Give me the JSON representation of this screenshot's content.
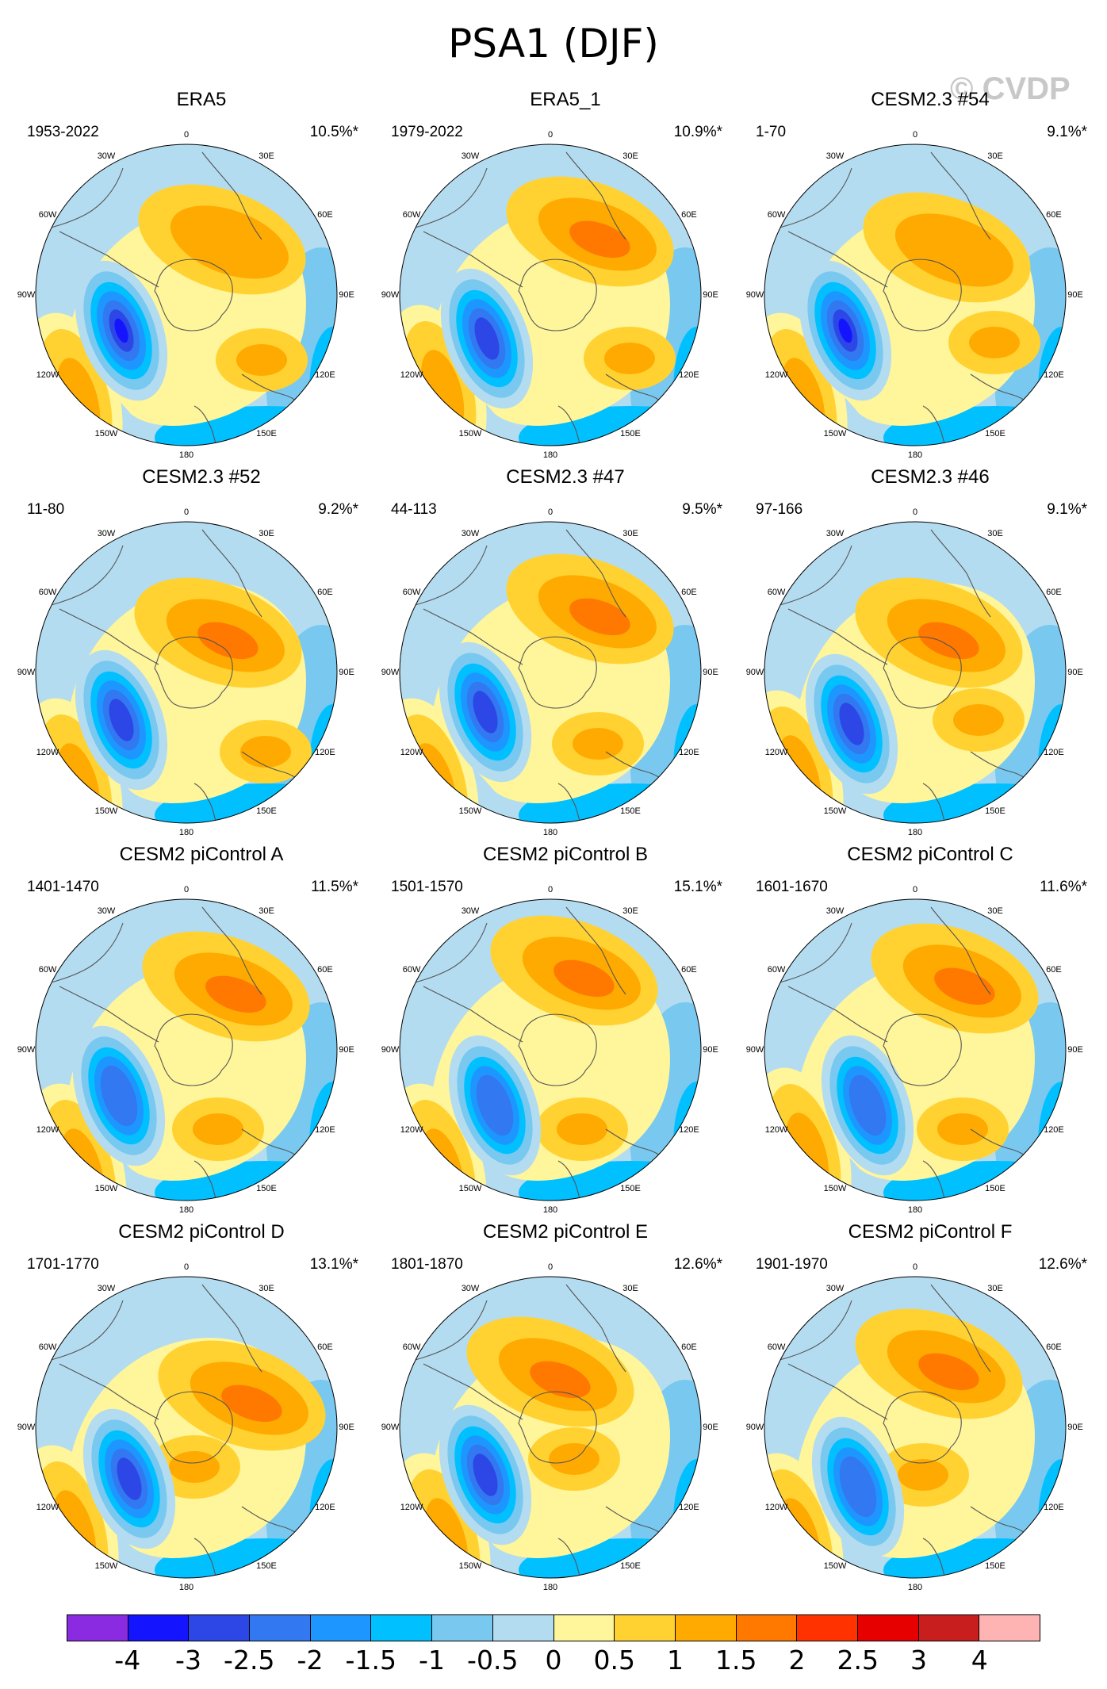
{
  "title": "PSA1 (DJF)",
  "watermark": "© CVDP",
  "longitude_labels": [
    "0",
    "30E",
    "60E",
    "90E",
    "120E",
    "150E",
    "180",
    "150W",
    "120W",
    "90W",
    "60W",
    "30W"
  ],
  "palette": {
    "neg4": "#8a2be2",
    "neg35": "#1414ff",
    "neg3": "#2d46e6",
    "neg25": "#3278f0",
    "neg2": "#1e96ff",
    "neg15": "#00c0ff",
    "neg1": "#78c8f0",
    "neg05": "#b4dcf0",
    "pos0": "#fff59a",
    "pos05": "#ffd232",
    "pos1": "#ffaa00",
    "pos15": "#ff7800",
    "pos2": "#ff3200",
    "pos25": "#e60000",
    "pos3": "#c81e1e",
    "pos35": "#ffb4b4",
    "coast": "#555555",
    "outline": "#000000"
  },
  "colorbar": {
    "colors": [
      "#8a2be2",
      "#1414ff",
      "#2d46e6",
      "#3278f0",
      "#1e96ff",
      "#00c0ff",
      "#78c8f0",
      "#b4dcf0",
      "#fff59a",
      "#ffd232",
      "#ffaa00",
      "#ff7800",
      "#ff3200",
      "#e60000",
      "#c81e1e",
      "#ffb4b4"
    ],
    "labels": [
      "-4",
      "-3",
      "-2.5",
      "-2",
      "-1.5",
      "-1",
      "-0.5",
      "0",
      "0.5",
      "1",
      "1.5",
      "2",
      "2.5",
      "3",
      "4"
    ]
  },
  "panels": [
    {
      "title": "ERA5",
      "years": "1953-2022",
      "pct": "10.5%*"
    },
    {
      "title": "ERA5_1",
      "years": "1979-2022",
      "pct": "10.9%*"
    },
    {
      "title": "CESM2.3 #54",
      "years": "1-70",
      "pct": "9.1%*"
    },
    {
      "title": "CESM2.3 #52",
      "years": "11-80",
      "pct": "9.2%*"
    },
    {
      "title": "CESM2.3 #47",
      "years": "44-113",
      "pct": "9.5%*"
    },
    {
      "title": "CESM2.3 #46",
      "years": "97-166",
      "pct": "9.1%*"
    },
    {
      "title": "CESM2 piControl A",
      "years": "1401-1470",
      "pct": "11.5%*"
    },
    {
      "title": "CESM2 piControl B",
      "years": "1501-1570",
      "pct": "15.1%*"
    },
    {
      "title": "CESM2 piControl C",
      "years": "1601-1670",
      "pct": "11.6%*"
    },
    {
      "title": "CESM2 piControl D",
      "years": "1701-1770",
      "pct": "13.1%*"
    },
    {
      "title": "CESM2 piControl E",
      "years": "1801-1870",
      "pct": "12.6%*"
    },
    {
      "title": "CESM2 piControl F",
      "years": "1901-1970",
      "pct": "12.6%*"
    }
  ]
}
